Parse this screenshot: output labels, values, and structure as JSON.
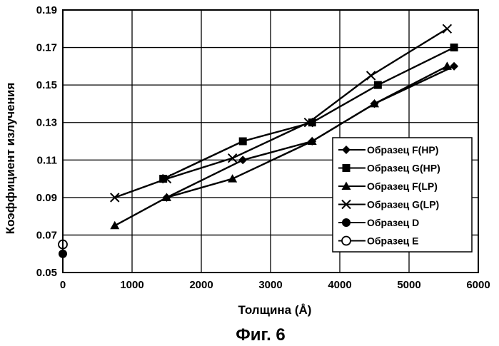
{
  "chart_data": {
    "type": "line",
    "title": "",
    "xlabel": "Толщина (Å)",
    "ylabel": "Коэффициент излучения",
    "xlim": [
      0,
      6000
    ],
    "ylim": [
      0.05,
      0.19
    ],
    "x_ticks": [
      0,
      1000,
      2000,
      3000,
      4000,
      5000,
      6000
    ],
    "x_tick_labels": [
      "0",
      "1000",
      "2000",
      "3000",
      "4000",
      "5000",
      "6000"
    ],
    "y_ticks": [
      0.05,
      0.07,
      0.09,
      0.11,
      0.13,
      0.15,
      0.17,
      0.19
    ],
    "y_tick_labels": [
      "0.05",
      "0.07",
      "0.09",
      "0.11",
      "0.13",
      "0.15",
      "0.17",
      "0.19"
    ],
    "grid": true,
    "legend_position": "right",
    "series": [
      {
        "name": "Образец F(HP)",
        "marker": "diamond",
        "x": [
          1500,
          2600,
          3600,
          4500,
          5650
        ],
        "y": [
          0.09,
          0.11,
          0.12,
          0.14,
          0.16
        ]
      },
      {
        "name": "Образец G(HP)",
        "marker": "square",
        "x": [
          1450,
          2600,
          3600,
          4550,
          5650
        ],
        "y": [
          0.1,
          0.12,
          0.13,
          0.15,
          0.17
        ]
      },
      {
        "name": "Образец F(LP)",
        "marker": "triangle",
        "x": [
          750,
          1500,
          2450,
          3600,
          4500,
          5550
        ],
        "y": [
          0.075,
          0.09,
          0.1,
          0.12,
          0.14,
          0.16
        ]
      },
      {
        "name": "Образец G(LP)",
        "marker": "x",
        "x": [
          750,
          1500,
          2450,
          3550,
          4450,
          5550
        ],
        "y": [
          0.09,
          0.1,
          0.111,
          0.13,
          0.155,
          0.18
        ]
      },
      {
        "name": "Образец D",
        "marker": "filled-circle",
        "x": [
          0
        ],
        "y": [
          0.06
        ]
      },
      {
        "name": "Образец E",
        "marker": "open-circle",
        "x": [
          0
        ],
        "y": [
          0.065
        ]
      }
    ]
  },
  "caption": "Фиг. 6"
}
